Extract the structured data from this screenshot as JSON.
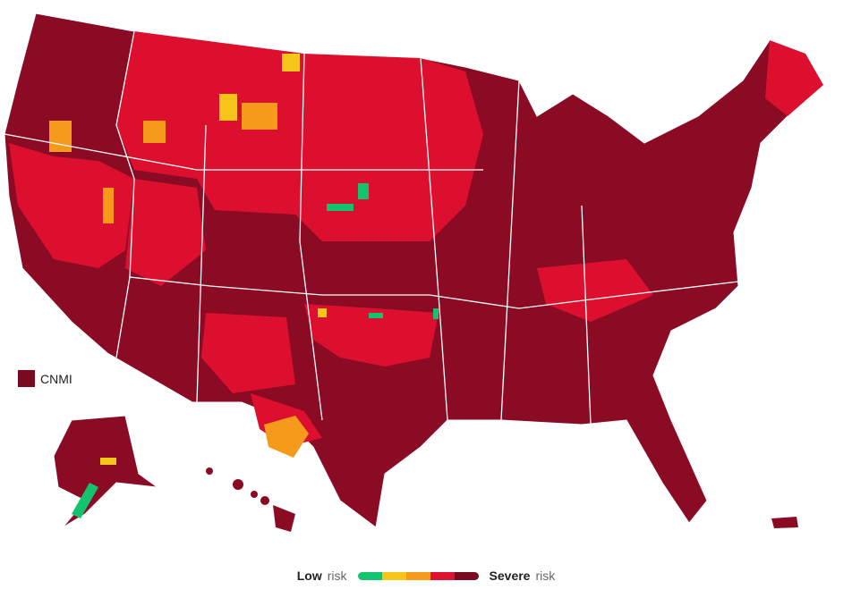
{
  "map": {
    "territory_label": "CNMI",
    "legend": {
      "low_label": "Low",
      "low_suffix": "risk",
      "high_label": "Severe",
      "high_suffix": "risk",
      "colors": [
        "#14c36e",
        "#f5c518",
        "#f59a1a",
        "#e0102f",
        "#7a0a1f"
      ]
    }
  }
}
